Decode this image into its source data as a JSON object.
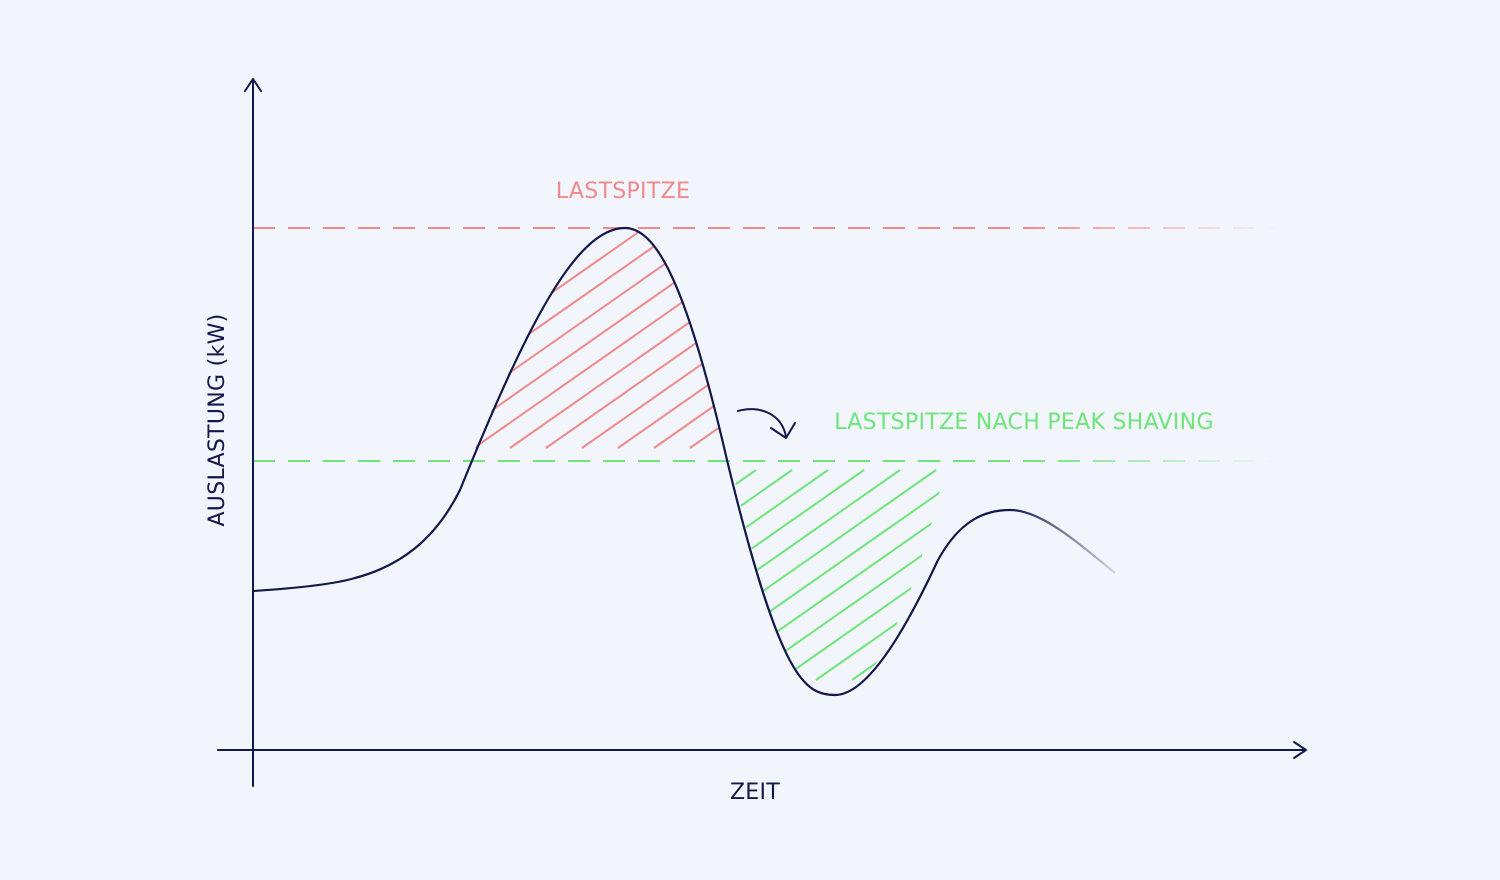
{
  "colors": {
    "background": "#f2f6fc",
    "axis": "#13184a",
    "curve": "#13184a",
    "peak": "#f08a8a",
    "shaved": "#6ee57a"
  },
  "chart_data": {
    "type": "line",
    "xlabel": "ZEIT",
    "ylabel": "AUSLASTUNG (kW)",
    "reference_lines": [
      {
        "label": "LASTSPITZE",
        "color": "#f08a8a",
        "style": "dashed",
        "y_relative": 1.0
      },
      {
        "label": "LASTSPITZE NACH PEAK SHAVING",
        "color": "#6ee57a",
        "style": "dashed",
        "y_relative": 0.5
      }
    ],
    "annotations": [
      {
        "type": "hatched-area",
        "meaning": "load above shaved peak",
        "color": "#f08a8a"
      },
      {
        "type": "hatched-area",
        "meaning": "load shifted below shaved peak",
        "color": "#6ee57a"
      },
      {
        "type": "curved-arrow",
        "meaning": "shift"
      }
    ],
    "grid": false,
    "ticks": false
  }
}
